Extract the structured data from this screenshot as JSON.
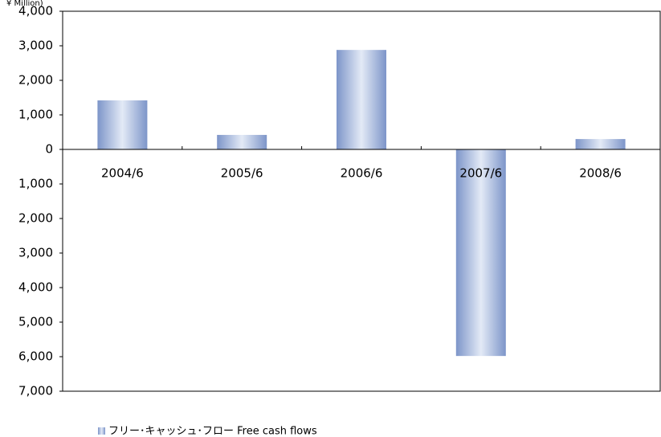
{
  "chart_data": {
    "type": "bar",
    "y_label": "¥ Million)",
    "categories": [
      "2004/6",
      "2005/6",
      "2006/6",
      "2007/6",
      "2008/6"
    ],
    "series": [
      {
        "name": "フリー･キャッシュ･フロー Free cash flows",
        "color": "#8299cc",
        "values": [
          1420,
          420,
          2880,
          -5980,
          300
        ]
      }
    ],
    "ylim": [
      -7000,
      4000
    ],
    "yticks": [
      {
        "value": -7000,
        "label": "7,000"
      },
      {
        "value": -6000,
        "label": "6,000"
      },
      {
        "value": -5000,
        "label": "5,000"
      },
      {
        "value": -4000,
        "label": "4,000"
      },
      {
        "value": -3000,
        "label": "3,000"
      },
      {
        "value": -2000,
        "label": "2,000"
      },
      {
        "value": -1000,
        "label": "1,000"
      },
      0,
      {
        "value": 1000,
        "label": "1,000"
      },
      {
        "value": 2000,
        "label": "2,000"
      },
      {
        "value": 3000,
        "label": "3,000"
      },
      {
        "value": 4000,
        "label": "4,000"
      }
    ],
    "grid": false
  }
}
